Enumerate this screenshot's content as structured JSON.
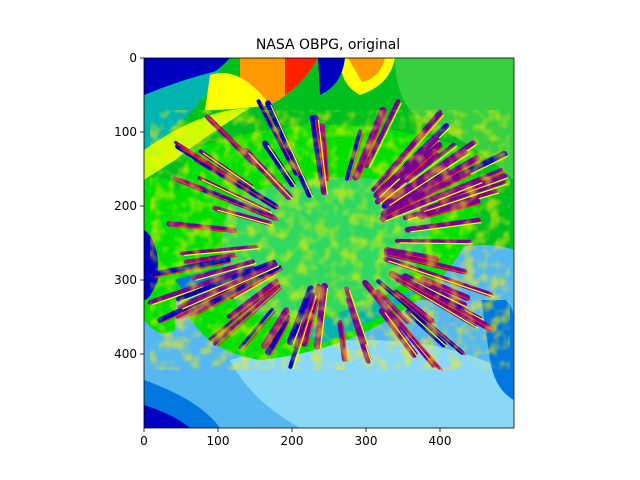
{
  "chart_data": {
    "type": "heatmap",
    "title": "NASA OBPG, original",
    "xlabel": "",
    "ylabel": "",
    "xlim": [
      0,
      500
    ],
    "ylim": [
      500,
      0
    ],
    "x_ticks": [
      0,
      100,
      200,
      300,
      400
    ],
    "y_ticks": [
      0,
      100,
      200,
      300,
      400
    ],
    "grid": false,
    "colormap": "nipy_spectral",
    "colormap_stops": [
      "#0000c0",
      "#0078e0",
      "#00b4b0",
      "#00a000",
      "#00e000",
      "#c8ff00",
      "#ffff00",
      "#ff9900",
      "#ff2000"
    ],
    "feature_colors": {
      "ridges": "#7a0094",
      "ocean": "#56b8f0",
      "land": "#38d040"
    }
  }
}
